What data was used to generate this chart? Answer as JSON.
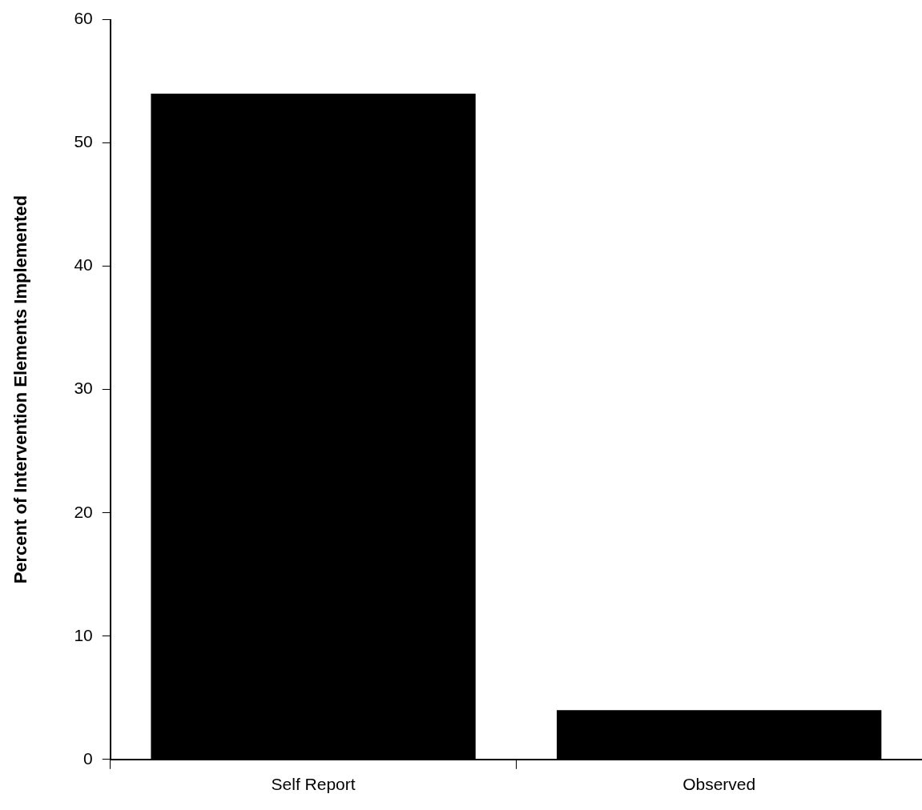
{
  "chart_data": {
    "type": "bar",
    "ylabel": "Percent of Intervention Elements Implemented",
    "categories": [
      "Self Report",
      "Observed"
    ],
    "values": [
      54,
      4
    ],
    "color": "#000000",
    "ylim": [
      0,
      60
    ],
    "yticks": [
      0,
      10,
      20,
      30,
      40,
      50,
      60
    ],
    "grid": false
  }
}
